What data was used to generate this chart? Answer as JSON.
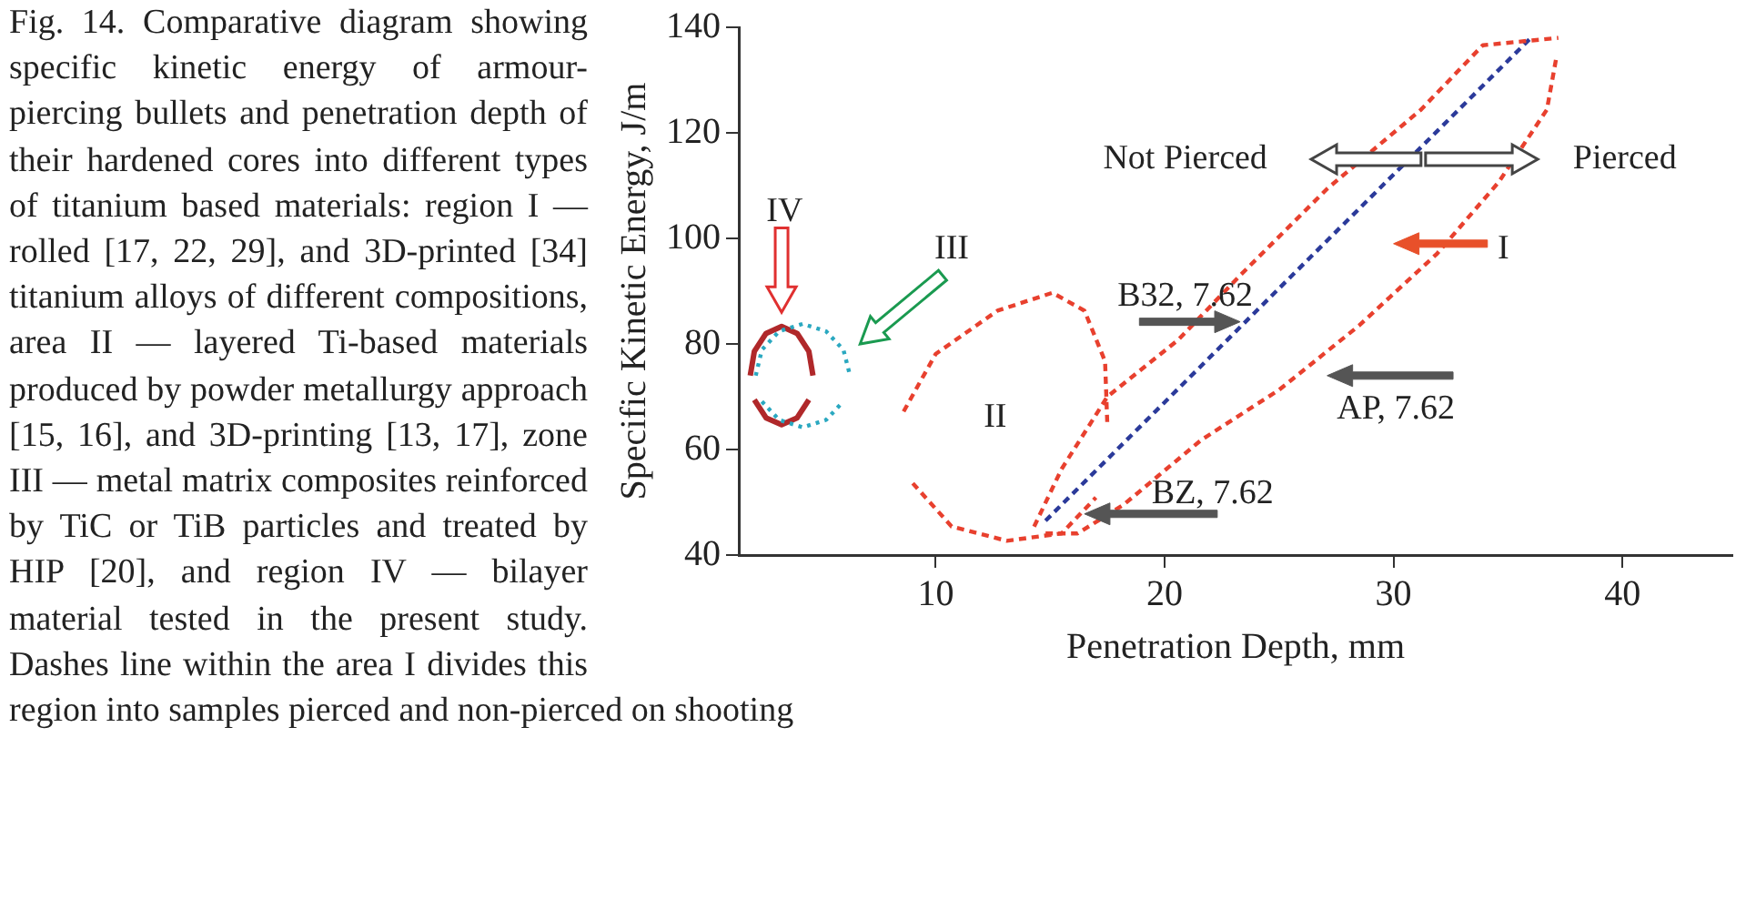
{
  "chart_data": {
    "type": "line",
    "xlabel": "Penetration Depth, mm",
    "ylabel": "Specific Kinetic Energy, J/m",
    "xlim": [
      1.4,
      44.8
    ],
    "ylim": [
      40,
      140
    ],
    "xticks": [
      10,
      20,
      30,
      40
    ],
    "yticks": [
      40,
      60,
      80,
      100,
      120,
      140
    ],
    "grid": false,
    "legend": false,
    "marker": "none",
    "annotations": [
      "Fig. 14. Comparative diagram showing specific kinetic energy of armour-piercing bullets and penetration depth of their hardened cores into different types of titanium based materials: region I — rolled [17, 22, 29], and 3D-printed [34] titanium alloys of different compositions, area II — layered Ti-based materials produced by powder metallurgy approach [15, 16], and 3D-printing [13, 17], zone III — metal matrix composites reinforced by TiC or TiB particles and treated by HIP [20], and region IV — bilayer material tested in the present study. Dashes line within the area I divides this region into samples pierced and non-pierced on shooting",
      "Not Pierced",
      "Pierced",
      "I",
      "II",
      "III",
      "IV",
      "B32, 7.62",
      "AP, 7.62",
      "BZ, 7.62"
    ],
    "series": [
      {
        "color": "#e8402e",
        "line_style": "dashed",
        "x": [
          14.3,
          15.5,
          17.5,
          20.6,
          23.3,
          27.1,
          31.2,
          33.9,
          37.2
        ],
        "values": [
          45.4,
          56.3,
          70,
          80.8,
          93,
          109.4,
          124.4,
          136.6,
          138
        ]
      },
      {
        "color": "#e8402e",
        "line_style": "dashed",
        "x": [
          14.8,
          16.2,
          18.2,
          21.6,
          25,
          28.5,
          31.9,
          34.6,
          36.7,
          37.1
        ],
        "values": [
          44.1,
          44.1,
          49.5,
          61.8,
          71.3,
          83.5,
          97.1,
          110.7,
          124.4,
          134
        ]
      },
      {
        "color": "#e8402e",
        "line_style": "dashed",
        "x": [
          8.6,
          10,
          12.7,
          15.1,
          16.5,
          17.4,
          17.5
        ],
        "values": [
          67.2,
          78.1,
          86.3,
          89.7,
          86.3,
          76.7,
          64.5
        ]
      },
      {
        "color": "#e8402e",
        "line_style": "dashed",
        "x": [
          9,
          10.7,
          13.1,
          15.5,
          17
        ],
        "values": [
          53.6,
          45.4,
          42.7,
          44.1,
          50.9
        ]
      },
      {
        "color": "#2aa8c0",
        "line_style": "dotted",
        "x": [
          2.14,
          2.41,
          3.16,
          4.19,
          5.21,
          5.97,
          6.26
        ],
        "values": [
          74,
          78.9,
          82.4,
          83.8,
          82.4,
          78.9,
          74
        ]
      },
      {
        "color": "#2aa8c0",
        "line_style": "dotted",
        "x": [
          2.41,
          3.16,
          4.19,
          5.21,
          5.97
        ],
        "values": [
          69.1,
          65.6,
          64.2,
          65.6,
          69.1
        ]
      },
      {
        "color": "#b0282a",
        "line_style": "solid",
        "x": [
          1.9,
          2.08,
          2.59,
          3.27,
          3.95,
          4.46,
          4.64
        ],
        "values": [
          74,
          78.6,
          82,
          83.3,
          82,
          78.6,
          74
        ]
      },
      {
        "color": "#b0282a",
        "line_style": "solid",
        "x": [
          2.08,
          2.59,
          3.27,
          3.95,
          4.46
        ],
        "values": [
          69.4,
          66,
          64.7,
          66,
          69.4
        ]
      },
      {
        "color": "#2b3a9a",
        "line_style": "dashed",
        "x": [
          14.8,
          36
        ],
        "values": [
          46.5,
          138
        ]
      }
    ]
  }
}
